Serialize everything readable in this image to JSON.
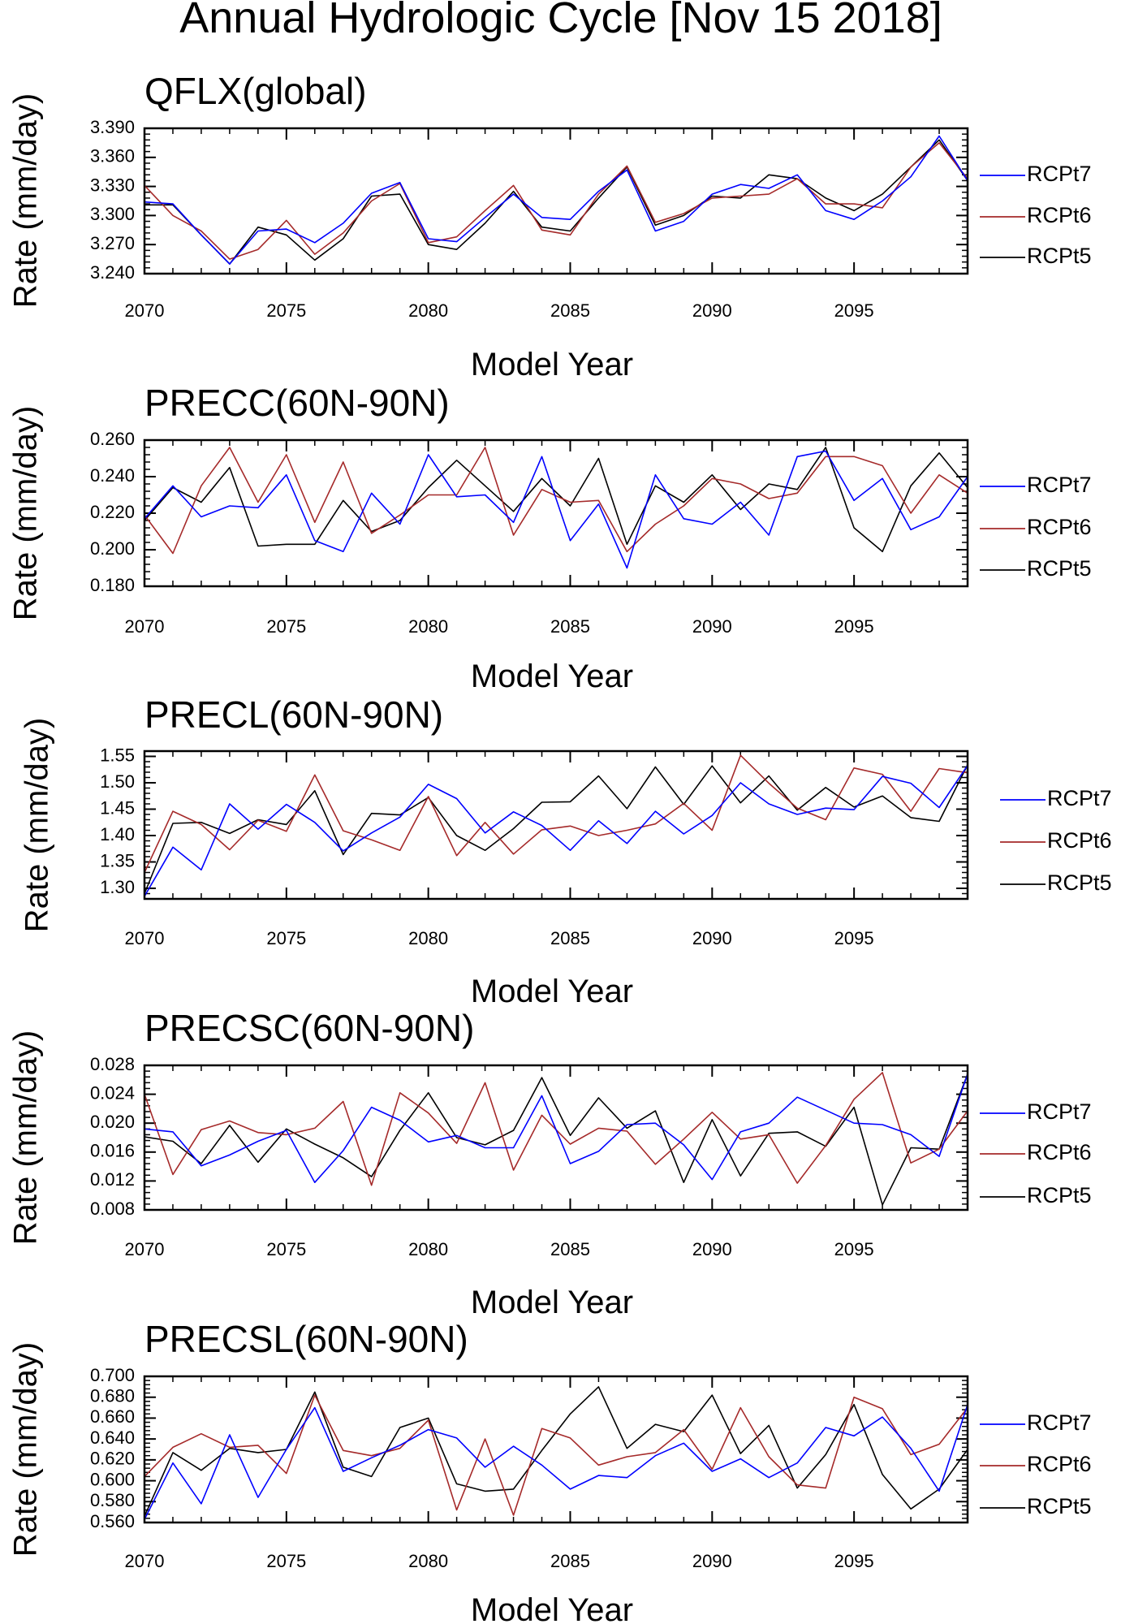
{
  "figure_title": "Annual Hydrologic Cycle [Nov 15 2018]",
  "chart_data": [
    {
      "type": "line",
      "title": "QFLX(global)",
      "xlabel": "Model Year",
      "ylabel": "Rate (mm/day)",
      "xlim": [
        2070,
        2099
      ],
      "ylim": [
        3.24,
        3.39
      ],
      "xticks": [
        "2070",
        "2075",
        "2080",
        "2085",
        "2090",
        "2095"
      ],
      "yticks": [
        "3.240",
        "3.270",
        "3.300",
        "3.330",
        "3.360",
        "3.390"
      ],
      "x": [
        2070,
        2071,
        2072,
        2073,
        2074,
        2075,
        2076,
        2077,
        2078,
        2079,
        2080,
        2081,
        2082,
        2083,
        2084,
        2085,
        2086,
        2087,
        2088,
        2089,
        2090,
        2091,
        2092,
        2093,
        2094,
        2095,
        2096,
        2097,
        2098,
        2099
      ],
      "legend_position": "right",
      "series": [
        {
          "name": "RCPt7",
          "color": "#0000ff",
          "values": [
            3.314,
            3.312,
            3.28,
            3.25,
            3.284,
            3.286,
            3.272,
            3.292,
            3.323,
            3.334,
            3.276,
            3.273,
            3.298,
            3.322,
            3.298,
            3.296,
            3.325,
            3.347,
            3.284,
            3.294,
            3.322,
            3.332,
            3.328,
            3.342,
            3.305,
            3.296,
            3.315,
            3.34,
            3.382,
            3.336
          ]
        },
        {
          "name": "RCPt6",
          "color": "#a52a2a",
          "values": [
            3.331,
            3.3,
            3.284,
            3.255,
            3.265,
            3.295,
            3.26,
            3.282,
            3.315,
            3.333,
            3.272,
            3.278,
            3.305,
            3.331,
            3.285,
            3.28,
            3.322,
            3.351,
            3.293,
            3.302,
            3.318,
            3.32,
            3.322,
            3.338,
            3.312,
            3.312,
            3.308,
            3.35,
            3.375,
            3.338
          ]
        },
        {
          "name": "RCPt5",
          "color": "#000000",
          "values": [
            3.311,
            3.311,
            3.28,
            3.25,
            3.288,
            3.28,
            3.254,
            3.276,
            3.32,
            3.322,
            3.27,
            3.265,
            3.292,
            3.325,
            3.288,
            3.284,
            3.318,
            3.35,
            3.29,
            3.3,
            3.32,
            3.318,
            3.342,
            3.338,
            3.318,
            3.305,
            3.322,
            3.35,
            3.378,
            3.336
          ]
        }
      ]
    },
    {
      "type": "line",
      "title": "PRECC(60N-90N)",
      "xlabel": "Model Year",
      "ylabel": "Rate (mm/day)",
      "xlim": [
        2070,
        2099
      ],
      "ylim": [
        0.18,
        0.26
      ],
      "xticks": [
        "2070",
        "2075",
        "2080",
        "2085",
        "2090",
        "2095"
      ],
      "yticks": [
        "0.180",
        "0.200",
        "0.220",
        "0.240",
        "0.260"
      ],
      "x": [
        2070,
        2071,
        2072,
        2073,
        2074,
        2075,
        2076,
        2077,
        2078,
        2079,
        2080,
        2081,
        2082,
        2083,
        2084,
        2085,
        2086,
        2087,
        2088,
        2089,
        2090,
        2091,
        2092,
        2093,
        2094,
        2095,
        2096,
        2097,
        2098,
        2099
      ],
      "legend_position": "right",
      "series": [
        {
          "name": "RCPt7",
          "color": "#0000ff",
          "values": [
            0.217,
            0.235,
            0.218,
            0.224,
            0.223,
            0.241,
            0.205,
            0.199,
            0.231,
            0.214,
            0.252,
            0.229,
            0.23,
            0.215,
            0.251,
            0.205,
            0.225,
            0.19,
            0.241,
            0.217,
            0.214,
            0.226,
            0.208,
            0.251,
            0.254,
            0.227,
            0.239,
            0.211,
            0.218,
            0.24
          ]
        },
        {
          "name": "RCPt6",
          "color": "#a52a2a",
          "values": [
            0.219,
            0.198,
            0.235,
            0.256,
            0.226,
            0.252,
            0.215,
            0.248,
            0.209,
            0.219,
            0.23,
            0.23,
            0.256,
            0.208,
            0.233,
            0.226,
            0.227,
            0.199,
            0.214,
            0.224,
            0.239,
            0.236,
            0.228,
            0.231,
            0.251,
            0.251,
            0.246,
            0.22,
            0.241,
            0.231
          ]
        },
        {
          "name": "RCPt5",
          "color": "#000000",
          "values": [
            0.216,
            0.234,
            0.226,
            0.245,
            0.202,
            0.203,
            0.203,
            0.227,
            0.21,
            0.216,
            0.234,
            0.249,
            0.235,
            0.221,
            0.239,
            0.224,
            0.25,
            0.203,
            0.235,
            0.226,
            0.241,
            0.222,
            0.236,
            0.233,
            0.256,
            0.212,
            0.199,
            0.235,
            0.253,
            0.234
          ]
        }
      ]
    },
    {
      "type": "line",
      "title": "PRECL(60N-90N)",
      "xlabel": "Model Year",
      "ylabel": "Rate (mm/day)",
      "xlim": [
        2070,
        2099
      ],
      "ylim": [
        1.28,
        1.56
      ],
      "xticks": [
        "2070",
        "2075",
        "2080",
        "2085",
        "2090",
        "2095"
      ],
      "yticks": [
        "1.30",
        "1.35",
        "1.40",
        "1.45",
        "1.50",
        "1.55"
      ],
      "x": [
        2070,
        2071,
        2072,
        2073,
        2074,
        2075,
        2076,
        2077,
        2078,
        2079,
        2080,
        2081,
        2082,
        2083,
        2084,
        2085,
        2086,
        2087,
        2088,
        2089,
        2090,
        2091,
        2092,
        2093,
        2094,
        2095,
        2096,
        2097,
        2098,
        2099
      ],
      "legend_position": "right",
      "series": [
        {
          "name": "RCPt7",
          "color": "#0000ff",
          "values": [
            1.285,
            1.378,
            1.335,
            1.46,
            1.412,
            1.459,
            1.425,
            1.371,
            1.405,
            1.435,
            1.497,
            1.47,
            1.405,
            1.445,
            1.419,
            1.372,
            1.428,
            1.385,
            1.446,
            1.403,
            1.438,
            1.5,
            1.46,
            1.44,
            1.452,
            1.449,
            1.512,
            1.499,
            1.453,
            1.533
          ]
        },
        {
          "name": "RCPt6",
          "color": "#a52a2a",
          "values": [
            1.33,
            1.446,
            1.421,
            1.373,
            1.429,
            1.408,
            1.515,
            1.409,
            1.392,
            1.372,
            1.474,
            1.362,
            1.425,
            1.365,
            1.411,
            1.418,
            1.4,
            1.41,
            1.422,
            1.461,
            1.41,
            1.552,
            1.499,
            1.452,
            1.43,
            1.528,
            1.516,
            1.446,
            1.527,
            1.519
          ]
        },
        {
          "name": "RCPt5",
          "color": "#000000",
          "values": [
            1.29,
            1.423,
            1.425,
            1.404,
            1.43,
            1.421,
            1.485,
            1.364,
            1.442,
            1.439,
            1.472,
            1.4,
            1.372,
            1.413,
            1.463,
            1.464,
            1.513,
            1.451,
            1.53,
            1.459,
            1.532,
            1.462,
            1.513,
            1.448,
            1.491,
            1.454,
            1.475,
            1.434,
            1.427,
            1.534
          ]
        }
      ]
    },
    {
      "type": "line",
      "title": "PRECSC(60N-90N)",
      "xlabel": "Model Year",
      "ylabel": "Rate (mm/day)",
      "xlim": [
        2070,
        2099
      ],
      "ylim": [
        0.008,
        0.028
      ],
      "xticks": [
        "2070",
        "2075",
        "2080",
        "2085",
        "2090",
        "2095"
      ],
      "yticks": [
        "0.008",
        "0.012",
        "0.016",
        "0.020",
        "0.024",
        "0.028"
      ],
      "x": [
        2070,
        2071,
        2072,
        2073,
        2074,
        2075,
        2076,
        2077,
        2078,
        2079,
        2080,
        2081,
        2082,
        2083,
        2084,
        2085,
        2086,
        2087,
        2088,
        2089,
        2090,
        2091,
        2092,
        2093,
        2094,
        2095,
        2096,
        2097,
        2098,
        2099
      ],
      "legend_position": "right",
      "series": [
        {
          "name": "RCPt7",
          "color": "#0000ff",
          "values": [
            0.0192,
            0.0188,
            0.0141,
            0.0156,
            0.0175,
            0.019,
            0.0118,
            0.0162,
            0.0222,
            0.0204,
            0.0174,
            0.0183,
            0.0166,
            0.0166,
            0.0238,
            0.0144,
            0.0161,
            0.0198,
            0.02,
            0.017,
            0.0122,
            0.0188,
            0.02,
            0.0236,
            0.0218,
            0.02,
            0.0198,
            0.0184,
            0.0154,
            0.0268
          ]
        },
        {
          "name": "RCPt6",
          "color": "#a52a2a",
          "values": [
            0.024,
            0.0129,
            0.0191,
            0.0203,
            0.0187,
            0.0184,
            0.0193,
            0.023,
            0.0114,
            0.0242,
            0.0214,
            0.0172,
            0.0256,
            0.0135,
            0.0211,
            0.0171,
            0.0193,
            0.0189,
            0.0143,
            0.0178,
            0.0215,
            0.0178,
            0.0184,
            0.0117,
            0.0169,
            0.0233,
            0.027,
            0.0145,
            0.0164,
            0.0217
          ]
        },
        {
          "name": "RCPt5",
          "color": "#000000",
          "values": [
            0.0181,
            0.0175,
            0.0144,
            0.0197,
            0.0146,
            0.0192,
            0.0171,
            0.0152,
            0.0126,
            0.019,
            0.0242,
            0.018,
            0.017,
            0.019,
            0.0263,
            0.0183,
            0.0235,
            0.0193,
            0.0217,
            0.0118,
            0.0205,
            0.0127,
            0.0186,
            0.0188,
            0.0168,
            0.0222,
            0.0087,
            0.0166,
            0.0164,
            0.0268
          ]
        }
      ]
    },
    {
      "type": "line",
      "title": "PRECSL(60N-90N)",
      "xlabel": "Model Year",
      "ylabel": "Rate (mm/day)",
      "xlim": [
        2070,
        2099
      ],
      "ylim": [
        0.56,
        0.7
      ],
      "xticks": [
        "2070",
        "2075",
        "2080",
        "2085",
        "2090",
        "2095"
      ],
      "yticks": [
        "0.560",
        "0.580",
        "0.600",
        "0.620",
        "0.640",
        "0.660",
        "0.680",
        "0.700"
      ],
      "x": [
        2070,
        2071,
        2072,
        2073,
        2074,
        2075,
        2076,
        2077,
        2078,
        2079,
        2080,
        2081,
        2082,
        2083,
        2084,
        2085,
        2086,
        2087,
        2088,
        2089,
        2090,
        2091,
        2092,
        2093,
        2094,
        2095,
        2096,
        2097,
        2098,
        2099
      ],
      "legend_position": "right",
      "series": [
        {
          "name": "RCPt7",
          "color": "#0000ff",
          "values": [
            0.563,
            0.617,
            0.578,
            0.644,
            0.584,
            0.63,
            0.67,
            0.609,
            0.622,
            0.634,
            0.649,
            0.641,
            0.613,
            0.633,
            0.615,
            0.592,
            0.605,
            0.603,
            0.624,
            0.636,
            0.609,
            0.621,
            0.603,
            0.617,
            0.651,
            0.643,
            0.661,
            0.631,
            0.59,
            0.673
          ]
        },
        {
          "name": "RCPt6",
          "color": "#a52a2a",
          "values": [
            0.604,
            0.632,
            0.645,
            0.632,
            0.634,
            0.607,
            0.682,
            0.629,
            0.624,
            0.631,
            0.658,
            0.572,
            0.64,
            0.567,
            0.65,
            0.641,
            0.615,
            0.623,
            0.627,
            0.649,
            0.611,
            0.67,
            0.623,
            0.596,
            0.593,
            0.68,
            0.669,
            0.625,
            0.635,
            0.67
          ]
        },
        {
          "name": "RCPt5",
          "color": "#000000",
          "values": [
            0.566,
            0.627,
            0.61,
            0.631,
            0.627,
            0.63,
            0.685,
            0.613,
            0.604,
            0.651,
            0.66,
            0.597,
            0.59,
            0.592,
            0.629,
            0.664,
            0.69,
            0.631,
            0.654,
            0.647,
            0.682,
            0.626,
            0.653,
            0.593,
            0.625,
            0.673,
            0.606,
            0.573,
            0.592,
            0.63
          ]
        }
      ]
    }
  ]
}
